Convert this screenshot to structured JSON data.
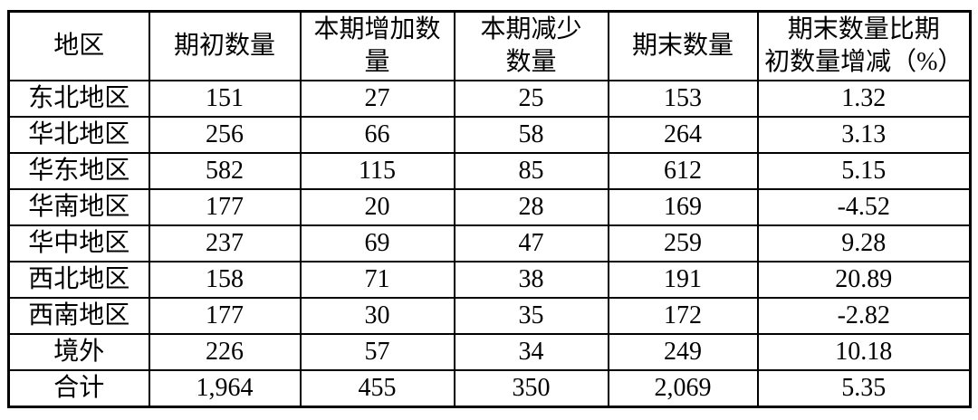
{
  "table": {
    "columns": [
      "地区",
      "期初数量",
      "本期增加数\n量",
      "本期减少\n数量",
      "期末数量",
      "期末数量比期\n初数量增减（%）"
    ],
    "rows": [
      {
        "region": "东北地区",
        "values": [
          "151",
          "27",
          "25",
          "153",
          "1.32"
        ]
      },
      {
        "region": "华北地区",
        "values": [
          "256",
          "66",
          "58",
          "264",
          "3.13"
        ]
      },
      {
        "region": "华东地区",
        "values": [
          "582",
          "115",
          "85",
          "612",
          "5.15"
        ]
      },
      {
        "region": "华南地区",
        "values": [
          "177",
          "20",
          "28",
          "169",
          "-4.52"
        ]
      },
      {
        "region": "华中地区",
        "values": [
          "237",
          "69",
          "47",
          "259",
          "9.28"
        ]
      },
      {
        "region": "西北地区",
        "values": [
          "158",
          "71",
          "38",
          "191",
          "20.89"
        ]
      },
      {
        "region": "西南地区",
        "values": [
          "177",
          "30",
          "35",
          "172",
          "-2.82"
        ]
      },
      {
        "region": "境外",
        "values": [
          "226",
          "57",
          "34",
          "249",
          "10.18"
        ]
      },
      {
        "region": "合计",
        "values": [
          "1,964",
          "455",
          "350",
          "2,069",
          "5.35"
        ],
        "is_total": true
      }
    ]
  },
  "chart_data": {
    "type": "table",
    "columns": [
      "地区",
      "期初数量",
      "本期增加数量",
      "本期减少数量",
      "期末数量",
      "期末数量比期初数量增减（%）"
    ],
    "rows": [
      [
        "东北地区",
        151,
        27,
        25,
        153,
        1.32
      ],
      [
        "华北地区",
        256,
        66,
        58,
        264,
        3.13
      ],
      [
        "华东地区",
        582,
        115,
        85,
        612,
        5.15
      ],
      [
        "华南地区",
        177,
        20,
        28,
        169,
        -4.52
      ],
      [
        "华中地区",
        237,
        69,
        47,
        259,
        9.28
      ],
      [
        "西北地区",
        158,
        71,
        38,
        191,
        20.89
      ],
      [
        "西南地区",
        177,
        30,
        35,
        172,
        -2.82
      ],
      [
        "境外",
        226,
        57,
        34,
        249,
        10.18
      ],
      [
        "合计",
        1964,
        455,
        350,
        2069,
        5.35
      ]
    ]
  },
  "colors": {
    "background": "#ffffff",
    "border": "#000000",
    "text": "#000000"
  }
}
